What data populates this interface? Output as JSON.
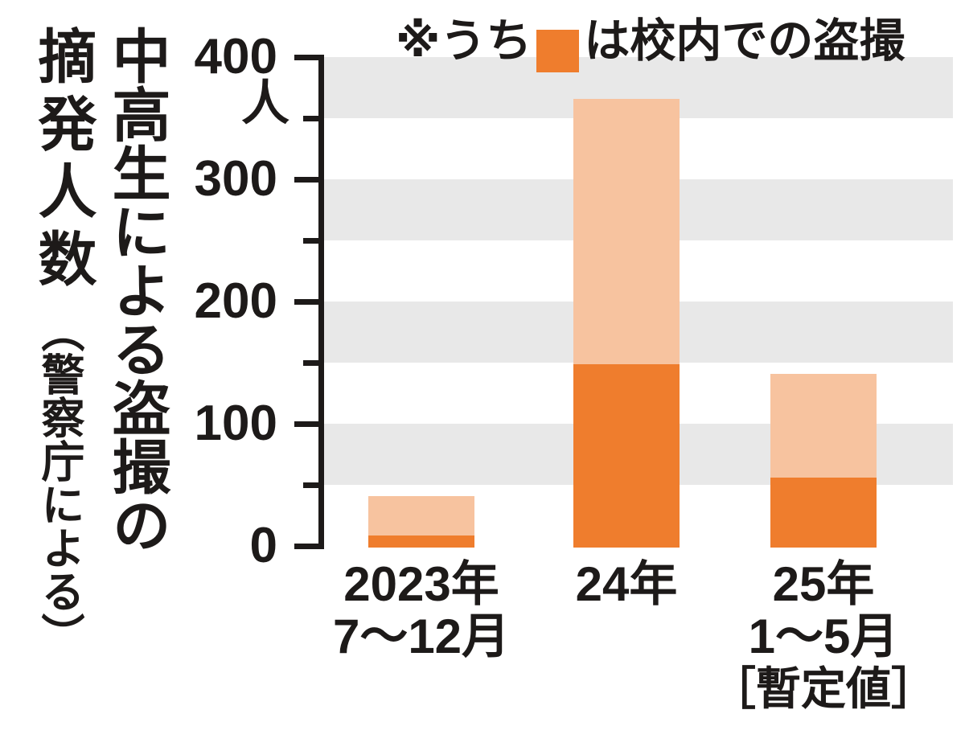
{
  "title": {
    "line1": "中高生による盗撮の",
    "line2": "摘発人数",
    "source": "（警察庁による）"
  },
  "legend": {
    "prefix": "※うち",
    "suffix": "は校内での盗撮",
    "swatch_color": "#ef7d2d"
  },
  "chart_data": {
    "type": "bar",
    "stacked": true,
    "title": "中高生による盗撮の摘発人数（警察庁による）",
    "unit": "人",
    "categories": [
      "2023年7〜12月",
      "24年",
      "25年1〜5月［暫定値］"
    ],
    "category_lines": [
      [
        "2023年",
        "7〜12月"
      ],
      [
        "24年"
      ],
      [
        "25年",
        "1〜5月",
        "［暫定値］"
      ]
    ],
    "series": [
      {
        "id": "total",
        "label": "",
        "color": "#f7c39f",
        "values": [
          42,
          367,
          142
        ]
      },
      {
        "id": "school",
        "label": "校内での盗撮",
        "color": "#ef7d2d",
        "values": [
          10,
          150,
          57
        ]
      }
    ],
    "ylim": [
      0,
      400
    ],
    "ytick_major": [
      0,
      100,
      200,
      300,
      400
    ],
    "ytick_minor": [
      50,
      150,
      250,
      350
    ],
    "grid_bands": [
      [
        50,
        100
      ],
      [
        150,
        200
      ],
      [
        250,
        300
      ],
      [
        350,
        400
      ]
    ],
    "band_color": "#e8e8e8",
    "axis_color": "#1d1a19",
    "grid": "horizontal-bands",
    "legend_position": "top-right"
  }
}
